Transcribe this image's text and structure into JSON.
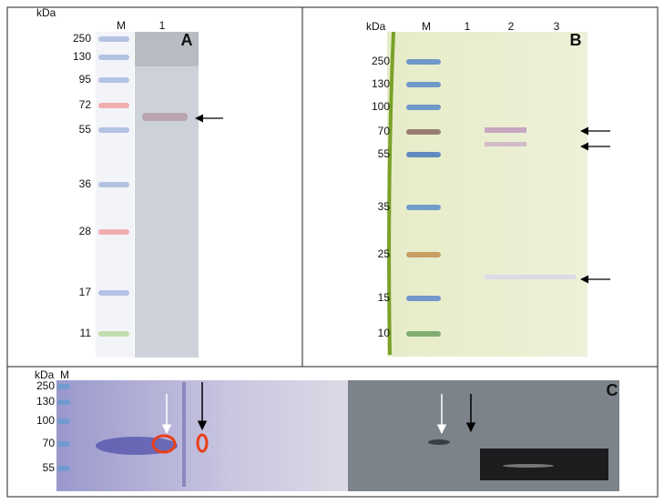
{
  "panels": {
    "A": {
      "label": "A",
      "unit": "kDa",
      "marker": "M",
      "lanes": [
        "1"
      ],
      "markers": [
        250,
        130,
        95,
        72,
        55,
        36,
        28,
        17,
        11
      ]
    },
    "B": {
      "label": "B",
      "unit": "kDa",
      "marker": "M",
      "lanes": [
        "1",
        "2",
        "3"
      ],
      "markers": [
        250,
        130,
        100,
        70,
        55,
        35,
        25,
        15,
        10
      ]
    },
    "C": {
      "label": "C",
      "unit": "kDa",
      "marker": "M",
      "markers": [
        250,
        130,
        100,
        70,
        55
      ]
    }
  }
}
